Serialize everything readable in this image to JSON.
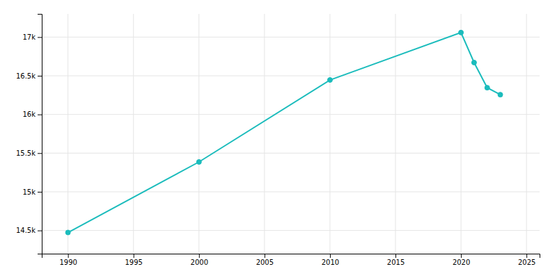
{
  "chart_data": {
    "type": "line",
    "x": [
      1990,
      2000,
      2010,
      2020,
      2021,
      2022,
      2023
    ],
    "values": [
      14474,
      15386,
      16446,
      17059,
      16671,
      16346,
      16256
    ],
    "color": "#1bbcbc",
    "marker": "circle",
    "xlim": [
      1988,
      2026
    ],
    "ylim": [
      14200,
      17300
    ],
    "xticks": [
      1990,
      1995,
      2000,
      2005,
      2010,
      2015,
      2020,
      2025
    ],
    "yticks": [
      {
        "value": 14500,
        "label": "14.5k"
      },
      {
        "value": 15000,
        "label": "15k"
      },
      {
        "value": 15500,
        "label": "15.5k"
      },
      {
        "value": 16000,
        "label": "16k"
      },
      {
        "value": 16500,
        "label": "16.5k"
      },
      {
        "value": 17000,
        "label": "17k"
      }
    ],
    "grid": true
  }
}
